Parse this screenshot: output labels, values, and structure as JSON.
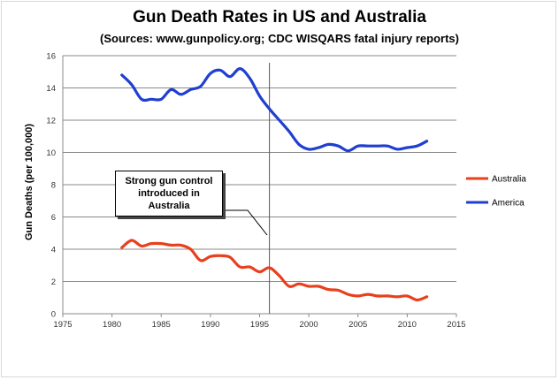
{
  "chart_data": {
    "type": "line",
    "title": "Gun Death Rates in US and Australia",
    "subtitle": "(Sources: www.gunpolicy.org; CDC WISQARS fatal injury reports)",
    "xlabel": "",
    "ylabel": "Gun Deaths (per 100,000)",
    "xlim": [
      1975,
      2015
    ],
    "ylim": [
      0,
      16
    ],
    "x_ticks": [
      1975,
      1980,
      1985,
      1990,
      1995,
      2000,
      2005,
      2010,
      2015
    ],
    "y_ticks": [
      0,
      2,
      4,
      6,
      8,
      10,
      12,
      14,
      16
    ],
    "grid": "horizontal",
    "legend_position": "right",
    "annotation": {
      "text": "Strong gun control introduced in Australia",
      "x": 1996
    },
    "series": [
      {
        "name": "Australia",
        "color": "#e8401c",
        "x": [
          1981,
          1982,
          1983,
          1984,
          1985,
          1986,
          1987,
          1988,
          1989,
          1990,
          1991,
          1992,
          1993,
          1994,
          1995,
          1996,
          1997,
          1998,
          1999,
          2000,
          2001,
          2002,
          2003,
          2004,
          2005,
          2006,
          2007,
          2008,
          2009,
          2010,
          2011,
          2012
        ],
        "values": [
          4.1,
          4.55,
          4.2,
          4.35,
          4.35,
          4.25,
          4.25,
          4.0,
          3.3,
          3.55,
          3.6,
          3.5,
          2.9,
          2.9,
          2.6,
          2.85,
          2.35,
          1.7,
          1.85,
          1.7,
          1.7,
          1.5,
          1.45,
          1.2,
          1.1,
          1.2,
          1.1,
          1.1,
          1.05,
          1.1,
          0.85,
          1.05
        ]
      },
      {
        "name": "America",
        "color": "#1f3fd1",
        "x": [
          1981,
          1982,
          1983,
          1984,
          1985,
          1986,
          1987,
          1988,
          1989,
          1990,
          1991,
          1992,
          1993,
          1994,
          1995,
          1996,
          1997,
          1998,
          1999,
          2000,
          2001,
          2002,
          2003,
          2004,
          2005,
          2006,
          2007,
          2008,
          2009,
          2010,
          2011,
          2012
        ],
        "values": [
          14.8,
          14.2,
          13.3,
          13.3,
          13.3,
          13.9,
          13.6,
          13.9,
          14.1,
          14.9,
          15.1,
          14.7,
          15.2,
          14.6,
          13.5,
          12.7,
          12.0,
          11.3,
          10.5,
          10.2,
          10.3,
          10.5,
          10.4,
          10.1,
          10.4,
          10.4,
          10.4,
          10.4,
          10.2,
          10.3,
          10.4,
          10.7
        ]
      }
    ]
  }
}
